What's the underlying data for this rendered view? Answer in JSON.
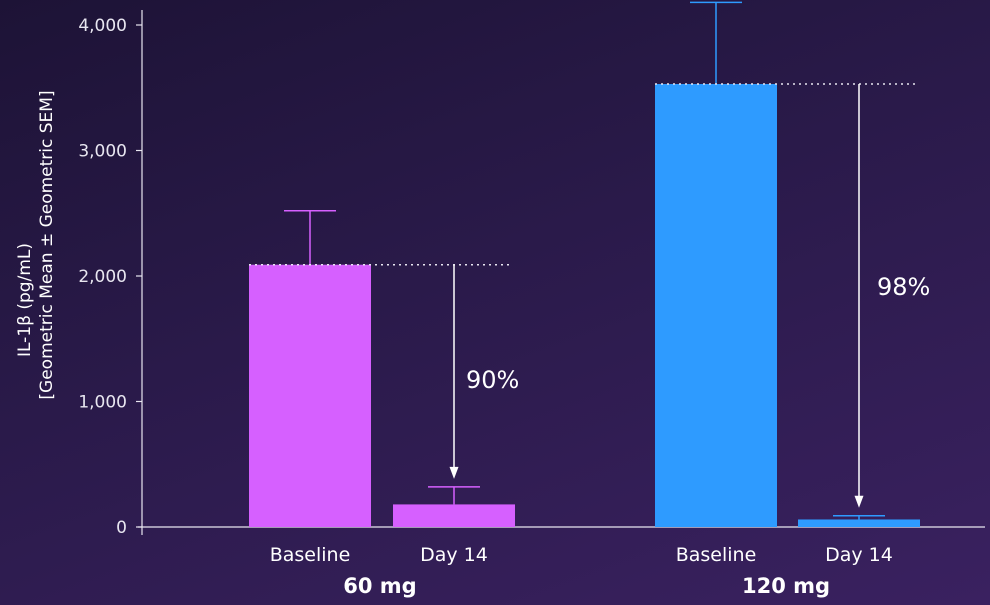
{
  "chart_data": {
    "type": "bar",
    "ylabel_line1": "IL-1β (pg/mL)",
    "ylabel_line2": "[Geometric Mean ± Geometric SEM]",
    "ylim": [
      0,
      4000
    ],
    "yticks": [
      0,
      1000,
      2000,
      3000,
      4000
    ],
    "ytick_labels": [
      "0",
      "1,000",
      "2,000",
      "3,000",
      "4,000"
    ],
    "groups": [
      {
        "name": "60 mg",
        "color": "#d660ff",
        "bars": [
          {
            "category": "Baseline",
            "value": 2090,
            "error_upper": 2520
          },
          {
            "category": "Day 14",
            "value": 180,
            "error_upper": 320
          }
        ],
        "reduction_label": "90%"
      },
      {
        "name": "120 mg",
        "color": "#2e9bff",
        "bars": [
          {
            "category": "Baseline",
            "value": 3530,
            "error_upper": 4180
          },
          {
            "category": "Day 14",
            "value": 60,
            "error_upper": 90
          }
        ],
        "reduction_label": "98%"
      }
    ],
    "grid": false
  }
}
